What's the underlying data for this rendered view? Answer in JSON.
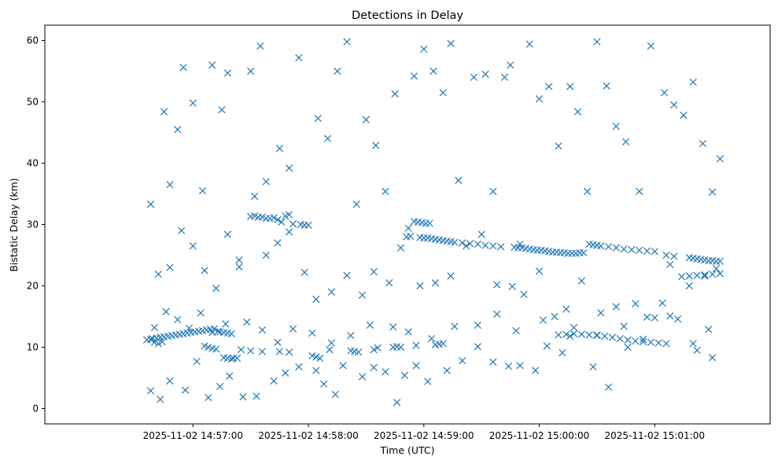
{
  "chart_data": {
    "type": "scatter",
    "title": "Detections in Delay",
    "xlabel": "Time (UTC)",
    "ylabel": "Bistatic Delay (km)",
    "xlim": [
      "2025-11-02 14:55:43",
      "2025-11-02 15:02:00"
    ],
    "ylim": [
      -2.5,
      62.5
    ],
    "x_ticks": [
      "2025-11-02 14:57:00",
      "2025-11-02 14:58:00",
      "2025-11-02 14:59:00",
      "2025-11-02 15:00:00",
      "2025-11-02 15:01:00"
    ],
    "y_ticks": [
      "0",
      "10",
      "20",
      "30",
      "40",
      "50",
      "60"
    ],
    "marker": "x",
    "color": "#1f77b4",
    "grid": false,
    "series": [
      {
        "x": [
          "2025-11-02 14:56:36",
          "2025-11-02 14:56:38",
          "2025-11-02 14:56:39",
          "2025-11-02 14:56:41",
          "2025-11-02 14:56:43",
          "2025-11-02 14:56:45",
          "2025-11-02 14:56:47",
          "2025-11-02 14:56:49",
          "2025-11-02 14:56:51",
          "2025-11-02 14:56:53",
          "2025-11-02 14:56:55",
          "2025-11-02 14:56:57",
          "2025-11-02 14:56:59",
          "2025-11-02 14:57:01",
          "2025-11-02 14:57:03",
          "2025-11-02 14:57:05",
          "2025-11-02 14:57:07",
          "2025-11-02 14:57:09",
          "2025-11-02 14:57:11",
          "2025-11-02 14:57:13",
          "2025-11-02 14:57:14",
          "2025-11-02 14:57:16",
          "2025-11-02 14:57:18",
          "2025-11-02 14:57:20",
          "2025-11-02 14:57:16",
          "2025-11-02 14:57:18",
          "2025-11-02 14:57:20",
          "2025-11-02 14:57:21",
          "2025-11-02 14:57:23",
          "2025-11-02 14:56:40",
          "2025-11-02 14:56:42",
          "2025-11-02 14:56:44",
          "2025-11-02 14:57:06",
          "2025-11-02 14:57:08",
          "2025-11-02 14:57:10",
          "2025-11-02 14:57:12",
          "2025-11-02 14:57:25",
          "2025-11-02 14:57:30",
          "2025-11-02 14:57:36",
          "2025-11-02 14:57:45",
          "2025-11-02 14:57:50",
          "2025-11-02 14:58:02",
          "2025-11-02 14:58:04",
          "2025-11-02 14:58:06",
          "2025-11-02 14:58:11",
          "2025-11-02 14:58:22",
          "2025-11-02 14:58:24",
          "2025-11-02 14:58:26",
          "2025-11-02 14:58:34",
          "2025-11-02 14:58:36",
          "2025-11-02 14:58:44",
          "2025-11-02 14:58:46",
          "2025-11-02 14:58:48",
          "2025-11-02 14:58:56",
          "2025-11-02 14:59:06",
          "2025-11-02 14:59:08",
          "2025-11-02 14:59:10",
          "2025-11-02 14:57:30",
          "2025-11-02 14:57:32",
          "2025-11-02 14:57:34",
          "2025-11-02 14:57:36",
          "2025-11-02 14:57:38",
          "2025-11-02 14:57:40",
          "2025-11-02 14:57:42",
          "2025-11-02 14:57:44",
          "2025-11-02 14:57:46",
          "2025-11-02 14:57:48",
          "2025-11-02 14:57:50",
          "2025-11-02 14:57:52",
          "2025-11-02 14:57:56",
          "2025-11-02 14:57:58",
          "2025-11-02 14:58:00",
          "2025-11-02 14:58:51",
          "2025-11-02 14:58:53",
          "2025-11-02 14:58:55",
          "2025-11-02 14:58:57",
          "2025-11-02 14:58:59",
          "2025-11-02 14:59:01",
          "2025-11-02 14:59:03",
          "2025-11-02 14:58:58",
          "2025-11-02 14:59:00",
          "2025-11-02 14:59:02",
          "2025-11-02 14:59:04",
          "2025-11-02 14:59:06",
          "2025-11-02 14:59:08",
          "2025-11-02 14:59:10",
          "2025-11-02 14:59:12",
          "2025-11-02 14:59:14",
          "2025-11-02 14:59:16",
          "2025-11-02 14:59:20",
          "2025-11-02 14:59:24",
          "2025-11-02 14:59:28",
          "2025-11-02 14:59:32",
          "2025-11-02 14:59:36",
          "2025-11-02 14:59:40",
          "2025-11-02 14:59:47",
          "2025-11-02 14:59:49",
          "2025-11-02 14:59:51",
          "2025-11-02 14:59:53",
          "2025-11-02 14:59:55",
          "2025-11-02 14:59:57",
          "2025-11-02 14:59:59",
          "2025-11-02 15:00:01",
          "2025-11-02 15:00:03",
          "2025-11-02 15:00:05",
          "2025-11-02 15:00:07",
          "2025-11-02 15:00:09",
          "2025-11-02 15:00:11",
          "2025-11-02 15:00:13",
          "2025-11-02 15:00:15",
          "2025-11-02 15:00:17",
          "2025-11-02 15:00:19",
          "2025-11-02 15:00:21",
          "2025-11-02 15:00:23",
          "2025-11-02 15:00:26",
          "2025-11-02 15:00:28",
          "2025-11-02 15:00:30",
          "2025-11-02 15:00:32",
          "2025-11-02 15:00:36",
          "2025-11-02 15:00:40",
          "2025-11-02 15:00:44",
          "2025-11-02 15:00:48",
          "2025-11-02 15:00:52",
          "2025-11-02 15:00:56",
          "2025-11-02 15:01:00",
          "2025-11-02 15:00:10",
          "2025-11-02 15:00:14",
          "2025-11-02 15:00:18",
          "2025-11-02 15:00:22",
          "2025-11-02 15:00:26",
          "2025-11-02 15:00:30",
          "2025-11-02 15:00:34",
          "2025-11-02 15:00:38",
          "2025-11-02 15:00:42",
          "2025-11-02 15:00:46",
          "2025-11-02 15:00:50",
          "2025-11-02 15:00:54",
          "2025-11-02 15:00:58",
          "2025-11-02 15:01:02",
          "2025-11-02 15:01:06",
          "2025-11-02 15:01:18",
          "2025-11-02 15:01:20",
          "2025-11-02 15:01:22",
          "2025-11-02 15:01:24",
          "2025-11-02 15:01:26",
          "2025-11-02 15:01:28",
          "2025-11-02 15:01:30",
          "2025-11-02 15:01:32",
          "2025-11-02 15:01:34",
          "2025-11-02 15:01:06",
          "2025-11-02 15:01:10",
          "2025-11-02 15:01:14",
          "2025-11-02 15:01:18",
          "2025-11-02 15:01:22",
          "2025-11-02 15:01:26",
          "2025-11-02 15:01:30",
          "2025-11-02 15:01:34",
          "2025-11-02 14:56:38",
          "2025-11-02 14:56:45",
          "2025-11-02 14:56:48",
          "2025-11-02 14:56:52",
          "2025-11-02 14:56:55",
          "2025-11-02 14:57:00",
          "2025-11-02 14:57:05",
          "2025-11-02 14:57:10",
          "2025-11-02 14:57:15",
          "2025-11-02 14:57:18",
          "2025-11-02 14:57:24",
          "2025-11-02 14:57:30",
          "2025-11-02 14:57:35",
          "2025-11-02 14:57:38",
          "2025-11-02 14:57:45",
          "2025-11-02 14:57:50",
          "2025-11-02 14:57:55",
          "2025-11-02 14:58:05",
          "2025-11-02 14:58:10",
          "2025-11-02 14:58:15",
          "2025-11-02 14:58:20",
          "2025-11-02 14:58:25",
          "2025-11-02 14:58:30",
          "2025-11-02 14:58:35",
          "2025-11-02 14:58:40",
          "2025-11-02 14:58:45",
          "2025-11-02 14:58:55",
          "2025-11-02 14:59:00",
          "2025-11-02 14:59:05",
          "2025-11-02 14:59:10",
          "2025-11-02 14:59:14",
          "2025-11-02 14:59:18",
          "2025-11-02 14:59:26",
          "2025-11-02 14:59:32",
          "2025-11-02 14:59:36",
          "2025-11-02 14:59:42",
          "2025-11-02 14:59:45",
          "2025-11-02 14:59:50",
          "2025-11-02 14:59:55",
          "2025-11-02 15:00:00",
          "2025-11-02 15:00:05",
          "2025-11-02 15:00:10",
          "2025-11-02 15:00:16",
          "2025-11-02 15:00:20",
          "2025-11-02 15:00:25",
          "2025-11-02 15:00:30",
          "2025-11-02 15:00:35",
          "2025-11-02 15:00:40",
          "2025-11-02 15:00:45",
          "2025-11-02 15:00:52",
          "2025-11-02 15:00:58",
          "2025-11-02 15:01:05",
          "2025-11-02 15:01:10",
          "2025-11-02 15:01:15",
          "2025-11-02 15:01:20",
          "2025-11-02 15:01:25",
          "2025-11-02 15:01:30",
          "2025-11-02 15:01:34",
          "2025-11-02 14:56:38",
          "2025-11-02 14:56:43",
          "2025-11-02 14:56:48",
          "2025-11-02 14:56:56",
          "2025-11-02 14:57:02",
          "2025-11-02 14:57:08",
          "2025-11-02 14:57:14",
          "2025-11-02 14:57:19",
          "2025-11-02 14:57:26",
          "2025-11-02 14:57:33",
          "2025-11-02 14:57:42",
          "2025-11-02 14:57:48",
          "2025-11-02 14:57:55",
          "2025-11-02 14:58:04",
          "2025-11-02 14:58:08",
          "2025-11-02 14:58:14",
          "2025-11-02 14:58:18",
          "2025-11-02 14:58:28",
          "2025-11-02 14:58:34",
          "2025-11-02 14:58:40",
          "2025-11-02 14:58:46",
          "2025-11-02 14:58:50",
          "2025-11-02 14:58:56",
          "2025-11-02 14:59:02",
          "2025-11-02 14:59:12",
          "2025-11-02 14:59:20",
          "2025-11-02 14:59:28",
          "2025-11-02 14:59:36",
          "2025-11-02 14:59:44",
          "2025-11-02 14:59:50",
          "2025-11-02 14:59:58",
          "2025-11-02 15:00:04",
          "2025-11-02 15:00:12",
          "2025-11-02 15:00:18",
          "2025-11-02 15:00:28",
          "2025-11-02 15:00:36",
          "2025-11-02 15:00:46",
          "2025-11-02 15:00:54",
          "2025-11-02 15:01:04",
          "2025-11-02 15:01:12",
          "2025-11-02 15:01:22",
          "2025-11-02 15:01:30",
          "2025-11-02 14:56:42",
          "2025-11-02 14:56:48",
          "2025-11-02 14:56:54",
          "2025-11-02 14:57:00",
          "2025-11-02 14:57:06",
          "2025-11-02 14:57:12",
          "2025-11-02 14:57:18",
          "2025-11-02 14:57:24",
          "2025-11-02 14:57:32",
          "2025-11-02 14:57:38",
          "2025-11-02 14:57:44",
          "2025-11-02 14:57:50",
          "2025-11-02 14:57:58",
          "2025-11-02 14:58:04",
          "2025-11-02 14:58:12",
          "2025-11-02 14:58:20",
          "2025-11-02 14:58:28",
          "2025-11-02 14:58:34",
          "2025-11-02 14:58:42",
          "2025-11-02 14:58:48",
          "2025-11-02 14:58:52",
          "2025-11-02 14:58:58",
          "2025-11-02 14:59:06",
          "2025-11-02 14:59:14",
          "2025-11-02 14:59:22",
          "2025-11-02 14:59:30",
          "2025-11-02 14:59:38",
          "2025-11-02 14:59:46",
          "2025-11-02 14:59:52",
          "2025-11-02 15:00:00",
          "2025-11-02 15:00:08",
          "2025-11-02 15:00:14",
          "2025-11-02 15:00:22",
          "2025-11-02 15:00:32",
          "2025-11-02 15:00:40",
          "2025-11-02 15:00:50",
          "2025-11-02 15:01:00",
          "2025-11-02 15:01:08",
          "2025-11-02 15:01:18",
          "2025-11-02 15:01:26",
          "2025-11-02 15:01:32",
          "2025-11-02 14:56:40",
          "2025-11-02 14:56:46",
          "2025-11-02 14:56:52",
          "2025-11-02 14:56:58",
          "2025-11-02 14:57:04",
          "2025-11-02 14:57:10",
          "2025-11-02 14:57:17",
          "2025-11-02 14:57:28",
          "2025-11-02 14:57:36",
          "2025-11-02 14:57:44",
          "2025-11-02 14:57:52",
          "2025-11-02 14:58:02",
          "2025-11-02 14:58:12",
          "2025-11-02 14:58:22",
          "2025-11-02 14:58:32",
          "2025-11-02 14:58:44",
          "2025-11-02 14:58:52",
          "2025-11-02 14:59:04",
          "2025-11-02 14:59:16",
          "2025-11-02 14:59:28",
          "2025-11-02 14:59:38",
          "2025-11-02 14:59:48",
          "2025-11-02 15:00:02",
          "2025-11-02 15:00:16",
          "2025-11-02 15:00:30",
          "2025-11-02 15:00:44",
          "2025-11-02 15:00:56",
          "2025-11-02 15:01:08",
          "2025-11-02 15:01:20",
          "2025-11-02 15:01:28"
        ],
        "y": [
          11.2,
          11.3,
          11.4,
          11.5,
          11.6,
          11.7,
          11.8,
          11.9,
          12.0,
          12.1,
          12.2,
          12.3,
          12.4,
          12.5,
          12.6,
          12.7,
          12.8,
          12.9,
          13.0,
          12.6,
          12.5,
          12.4,
          12.3,
          12.2,
          8.3,
          8.2,
          8.1,
          8.2,
          8.2,
          10.8,
          10.6,
          10.9,
          10.2,
          10.0,
          9.8,
          9.7,
          9.6,
          9.4,
          9.3,
          9.3,
          9.2,
          8.6,
          8.4,
          8.2,
          9.6,
          9.4,
          9.3,
          9.2,
          9.6,
          9.9,
          10.0,
          10.1,
          10.0,
          10.3,
          10.4,
          10.5,
          10.6,
          31.3,
          31.4,
          31.2,
          31.2,
          31.0,
          31.0,
          31.1,
          30.8,
          30.4,
          31.4,
          31.6,
          30.1,
          30.0,
          29.9,
          29.9,
          28.0,
          28.1,
          30.5,
          30.4,
          30.3,
          30.2,
          30.2,
          27.9,
          27.8,
          27.8,
          27.7,
          27.6,
          27.5,
          27.4,
          27.3,
          27.2,
          27.1,
          27.0,
          26.9,
          26.8,
          26.6,
          26.5,
          26.4,
          26.3,
          26.2,
          26.2,
          26.1,
          26.0,
          25.9,
          25.8,
          25.8,
          25.7,
          25.6,
          25.5,
          25.5,
          25.4,
          25.4,
          25.3,
          25.3,
          25.3,
          25.4,
          25.4,
          26.8,
          26.7,
          26.6,
          26.5,
          26.4,
          26.2,
          26.0,
          25.9,
          25.8,
          25.7,
          25.6,
          12.0,
          12.1,
          12.2,
          12.1,
          12.0,
          11.9,
          11.8,
          11.6,
          11.4,
          11.2,
          11.0,
          10.9,
          10.8,
          10.7,
          10.6,
          24.6,
          24.5,
          24.4,
          24.3,
          24.2,
          24.1,
          24.1,
          24.0,
          24.0,
          25.0,
          24.8,
          21.5,
          21.6,
          21.7,
          21.8,
          21.9,
          22.0,
          33.3,
          48.4,
          36.5,
          45.5,
          55.6,
          49.8,
          35.5,
          56.0,
          48.7,
          54.7,
          23.1,
          55.0,
          59.1,
          37.0,
          42.4,
          39.2,
          57.2,
          47.3,
          44.0,
          55.0,
          59.8,
          33.3,
          47.1,
          42.9,
          35.4,
          51.3,
          54.2,
          58.6,
          55.0,
          51.5,
          59.5,
          37.2,
          54.0,
          54.5,
          35.4,
          54.0,
          56.0,
          26.8,
          59.4,
          50.5,
          52.5,
          42.8,
          52.5,
          48.4,
          35.4,
          59.8,
          52.6,
          46.0,
          43.5,
          35.4,
          59.1,
          51.5,
          49.5,
          47.8,
          53.2,
          43.2,
          35.3,
          40.7,
          2.9,
          1.5,
          4.5,
          3.0,
          7.7,
          1.8,
          3.6,
          5.3,
          1.9,
          2.0,
          4.5,
          5.8,
          6.8,
          6.2,
          4.0,
          2.3,
          7.0,
          5.2,
          6.7,
          6.0,
          1.0,
          5.4,
          7.0,
          4.4,
          6.2,
          7.8,
          10.1,
          7.6,
          6.9,
          7.0,
          6.2,
          10.2,
          9.1,
          13.2,
          6.8,
          3.5,
          10.0,
          11.3,
          17.2,
          14.6,
          9.5,
          8.3,
          21.9,
          23.0,
          29.0,
          26.5,
          22.5,
          19.6,
          28.4,
          24.2,
          34.6,
          25.0,
          27.0,
          28.8,
          22.2,
          17.8,
          19.0,
          21.7,
          18.5,
          22.3,
          20.5,
          26.2,
          29.4,
          20.0,
          20.5,
          21.6,
          26.5,
          28.4,
          20.2,
          19.9,
          18.6,
          22.4,
          15.0,
          16.2,
          20.8,
          15.6,
          16.6,
          17.1,
          14.8,
          23.5,
          20.0,
          21.6,
          22.8,
          13.2,
          15.8,
          14.5,
          13.1,
          15.6,
          12.4,
          13.8,
          14.1,
          12.8,
          10.8,
          13.0,
          12.3,
          10.7,
          11.9,
          13.6,
          13.3,
          12.5,
          11.4,
          13.4,
          13.6,
          15.4,
          12.7,
          14.4,
          11.8,
          12.0,
          13.4,
          14.9,
          15.1,
          10.6,
          12.9
        ]
      }
    ]
  }
}
